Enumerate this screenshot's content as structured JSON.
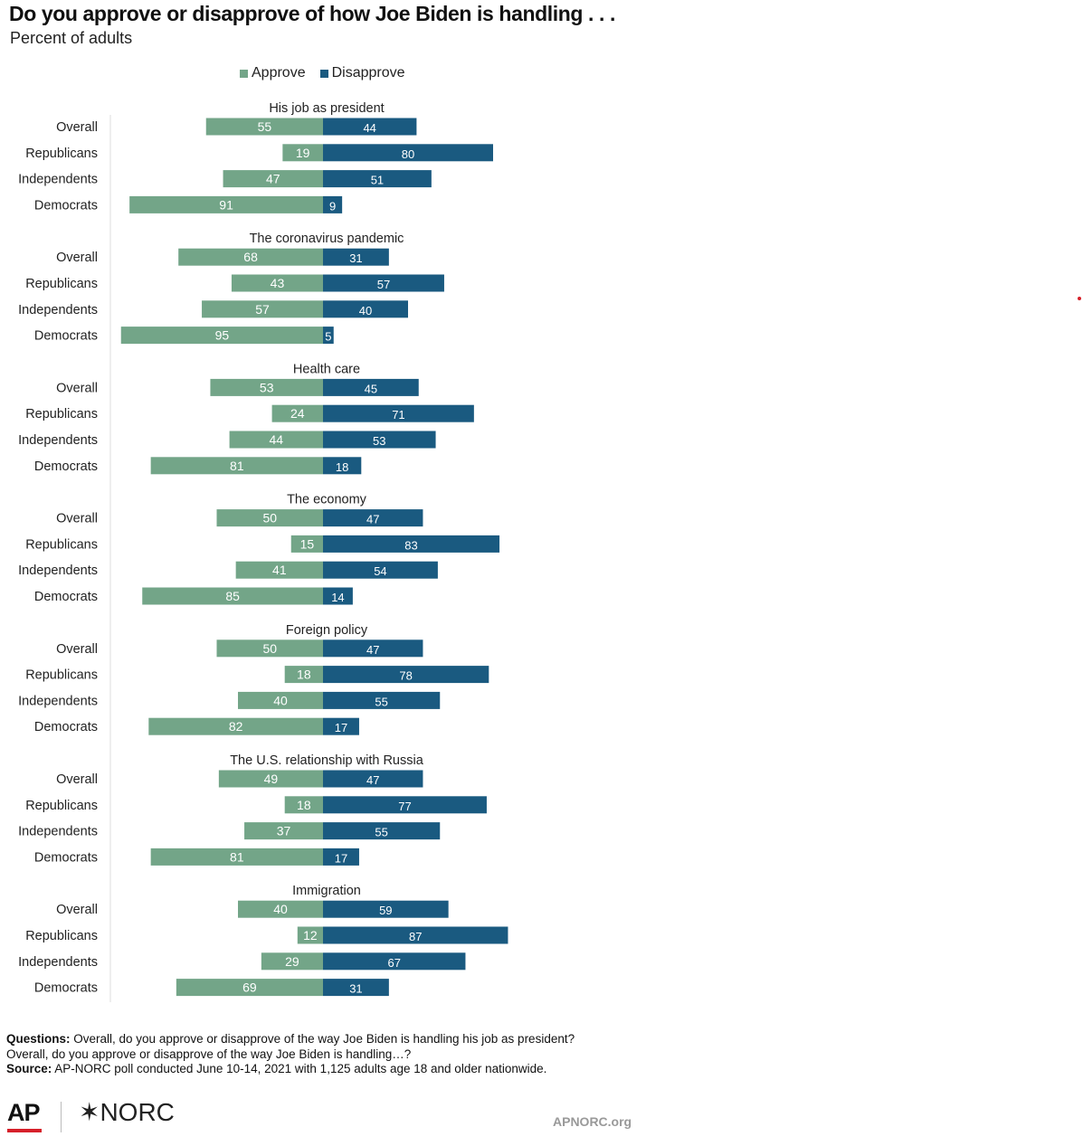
{
  "title": "Do you approve or disapprove of how Joe Biden is handling . . .",
  "subtitle": "Percent of adults",
  "legend": {
    "approve": "Approve",
    "disapprove": "Disapprove"
  },
  "colors": {
    "approve": "#73a588",
    "disapprove": "#1a5a80",
    "label_light": "#ffffff",
    "axis": "#dddddd"
  },
  "chart_data": {
    "type": "bar",
    "orientation": "horizontal-diverging",
    "series_names": [
      "Approve",
      "Disapprove"
    ],
    "groups": [
      {
        "title": "His job as president",
        "rows": [
          {
            "label": "Overall",
            "approve": 55,
            "disapprove": 44
          },
          {
            "label": "Republicans",
            "approve": 19,
            "disapprove": 80
          },
          {
            "label": "Independents",
            "approve": 47,
            "disapprove": 51
          },
          {
            "label": "Democrats",
            "approve": 91,
            "disapprove": 9
          }
        ]
      },
      {
        "title": "The coronavirus pandemic",
        "rows": [
          {
            "label": "Overall",
            "approve": 68,
            "disapprove": 31
          },
          {
            "label": "Republicans",
            "approve": 43,
            "disapprove": 57
          },
          {
            "label": "Independents",
            "approve": 57,
            "disapprove": 40
          },
          {
            "label": "Democrats",
            "approve": 95,
            "disapprove": 5
          }
        ]
      },
      {
        "title": "Health care",
        "rows": [
          {
            "label": "Overall",
            "approve": 53,
            "disapprove": 45
          },
          {
            "label": "Republicans",
            "approve": 24,
            "disapprove": 71
          },
          {
            "label": "Independents",
            "approve": 44,
            "disapprove": 53
          },
          {
            "label": "Democrats",
            "approve": 81,
            "disapprove": 18
          }
        ]
      },
      {
        "title": "The economy",
        "rows": [
          {
            "label": "Overall",
            "approve": 50,
            "disapprove": 47
          },
          {
            "label": "Republicans",
            "approve": 15,
            "disapprove": 83
          },
          {
            "label": "Independents",
            "approve": 41,
            "disapprove": 54
          },
          {
            "label": "Democrats",
            "approve": 85,
            "disapprove": 14
          }
        ]
      },
      {
        "title": "Foreign policy",
        "rows": [
          {
            "label": "Overall",
            "approve": 50,
            "disapprove": 47
          },
          {
            "label": "Republicans",
            "approve": 18,
            "disapprove": 78
          },
          {
            "label": "Independents",
            "approve": 40,
            "disapprove": 55
          },
          {
            "label": "Democrats",
            "approve": 82,
            "disapprove": 17
          }
        ]
      },
      {
        "title": "The U.S. relationship with Russia",
        "rows": [
          {
            "label": "Overall",
            "approve": 49,
            "disapprove": 47
          },
          {
            "label": "Republicans",
            "approve": 18,
            "disapprove": 77
          },
          {
            "label": "Independents",
            "approve": 37,
            "disapprove": 55
          },
          {
            "label": "Democrats",
            "approve": 81,
            "disapprove": 17
          }
        ]
      },
      {
        "title": "Immigration",
        "rows": [
          {
            "label": "Overall",
            "approve": 40,
            "disapprove": 59
          },
          {
            "label": "Republicans",
            "approve": 12,
            "disapprove": 87
          },
          {
            "label": "Independents",
            "approve": 29,
            "disapprove": 67
          },
          {
            "label": "Democrats",
            "approve": 69,
            "disapprove": 31
          }
        ]
      }
    ]
  },
  "footnote": {
    "questions_label": "Questions:",
    "questions_text": " Overall, do you approve or disapprove of the way Joe Biden is handling his job as president?",
    "questions_text2": "Overall, do you approve or disapprove of the way Joe Biden is handling…?",
    "source_label": "Source:",
    "source_text": " AP-NORC poll conducted June 10-14, 2021 with 1,125 adults age 18 and older nationwide."
  },
  "branding": {
    "ap": "AP",
    "norc": "✶NORC",
    "site": "APNORC.org"
  }
}
